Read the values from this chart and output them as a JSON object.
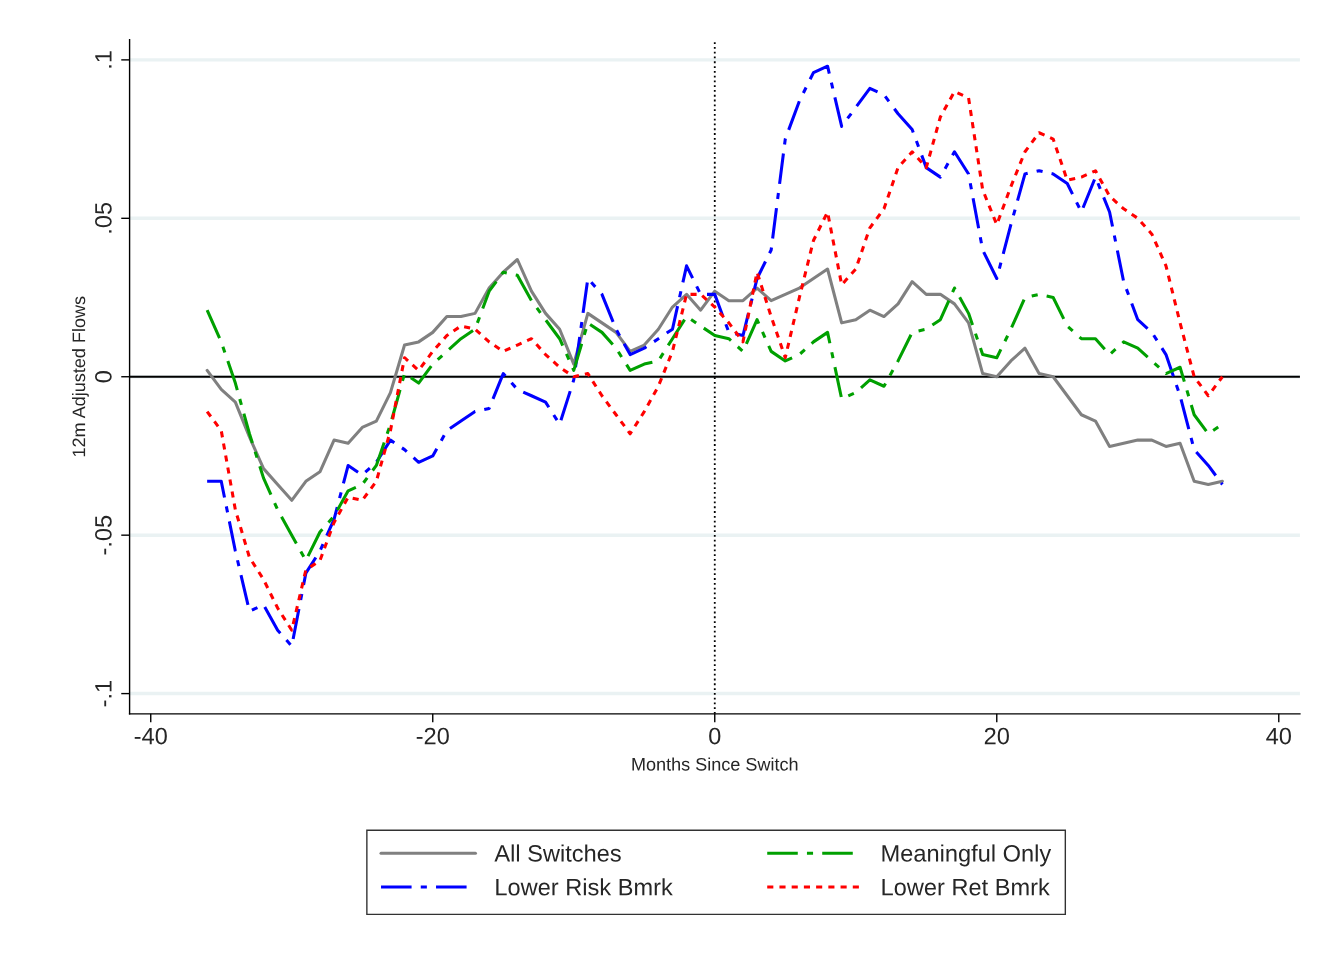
{
  "chart_data": {
    "type": "line",
    "xlabel": "Months Since Switch",
    "ylabel": "12m Adjusted Flows",
    "x": [
      -36,
      -35,
      -34,
      -33,
      -32,
      -31,
      -30,
      -29,
      -28,
      -27,
      -26,
      -25,
      -24,
      -23,
      -22,
      -21,
      -20,
      -19,
      -18,
      -17,
      -16,
      -15,
      -14,
      -13,
      -12,
      -11,
      -10,
      -9,
      -8,
      -7,
      -6,
      -5,
      -4,
      -3,
      -2,
      -1,
      0,
      1,
      2,
      3,
      4,
      5,
      6,
      7,
      8,
      9,
      10,
      11,
      12,
      13,
      14,
      15,
      16,
      17,
      18,
      19,
      20,
      21,
      22,
      23,
      24,
      25,
      26,
      27,
      28,
      29,
      30,
      31,
      32,
      33,
      34,
      35,
      36
    ],
    "series": [
      {
        "name": "All Switches",
        "color": "#808080",
        "line_style": "solid",
        "values": [
          0.002,
          -0.004,
          -0.008,
          -0.019,
          -0.029,
          -0.034,
          -0.039,
          -0.033,
          -0.03,
          -0.02,
          -0.021,
          -0.016,
          -0.014,
          -0.005,
          0.01,
          0.011,
          0.014,
          0.019,
          0.019,
          0.02,
          0.028,
          0.033,
          0.037,
          0.027,
          0.02,
          0.015,
          0.004,
          0.02,
          0.017,
          0.014,
          0.008,
          0.01,
          0.015,
          0.022,
          0.026,
          0.021,
          0.027,
          0.024,
          0.024,
          0.028,
          0.024,
          0.026,
          0.028,
          0.031,
          0.034,
          0.017,
          0.018,
          0.021,
          0.019,
          0.023,
          0.03,
          0.026,
          0.026,
          0.023,
          0.017,
          0.001,
          0.0,
          0.005,
          0.009,
          0.001,
          0.0,
          -0.006,
          -0.012,
          -0.014,
          -0.022,
          -0.021,
          -0.02,
          -0.02,
          -0.022,
          -0.021,
          -0.033,
          -0.034,
          -0.033
        ]
      },
      {
        "name": "Lower Risk Bmrk",
        "color": "#0000ff",
        "line_style": "dashed",
        "values": [
          -0.033,
          -0.033,
          -0.055,
          -0.074,
          -0.072,
          -0.08,
          -0.085,
          -0.062,
          -0.055,
          -0.045,
          -0.028,
          -0.031,
          -0.027,
          -0.02,
          -0.023,
          -0.027,
          -0.025,
          -0.017,
          -0.014,
          -0.011,
          -0.01,
          0.001,
          -0.004,
          -0.006,
          -0.008,
          -0.015,
          -0.001,
          0.031,
          0.026,
          0.015,
          0.007,
          0.009,
          0.012,
          0.015,
          0.035,
          0.026,
          0.026,
          0.014,
          0.013,
          0.031,
          0.04,
          0.075,
          0.087,
          0.096,
          0.098,
          0.079,
          0.085,
          0.091,
          0.089,
          0.083,
          0.078,
          0.066,
          0.063,
          0.071,
          0.064,
          0.04,
          0.031,
          0.048,
          0.064,
          0.065,
          0.064,
          0.061,
          0.052,
          0.063,
          0.052,
          0.03,
          0.018,
          0.014,
          0.007,
          -0.006,
          -0.023,
          -0.028,
          -0.034
        ]
      },
      {
        "name": "Meaningful Only",
        "color": "#00a000",
        "line_style": "dashed",
        "values": [
          0.021,
          0.011,
          -0.002,
          -0.018,
          -0.032,
          -0.042,
          -0.05,
          -0.058,
          -0.049,
          -0.044,
          -0.036,
          -0.034,
          -0.028,
          -0.015,
          0.001,
          -0.002,
          0.004,
          0.008,
          0.012,
          0.015,
          0.027,
          0.033,
          0.032,
          0.024,
          0.018,
          0.012,
          0.002,
          0.017,
          0.014,
          0.009,
          0.002,
          0.004,
          0.005,
          0.012,
          0.019,
          0.016,
          0.013,
          0.012,
          0.008,
          0.018,
          0.008,
          0.005,
          0.007,
          0.011,
          0.014,
          -0.007,
          -0.005,
          -0.001,
          -0.003,
          0.005,
          0.014,
          0.015,
          0.018,
          0.028,
          0.02,
          0.007,
          0.006,
          0.015,
          0.025,
          0.026,
          0.025,
          0.016,
          0.012,
          0.012,
          0.007,
          0.011,
          0.009,
          0.005,
          0.001,
          0.003,
          -0.012,
          -0.018,
          -0.015
        ]
      },
      {
        "name": "Lower Ret Bmrk",
        "color": "#ff0000",
        "line_style": "dotted",
        "values": [
          -0.011,
          -0.017,
          -0.042,
          -0.057,
          -0.064,
          -0.073,
          -0.08,
          -0.061,
          -0.058,
          -0.046,
          -0.038,
          -0.039,
          -0.033,
          -0.017,
          0.006,
          0.002,
          0.008,
          0.013,
          0.016,
          0.015,
          0.011,
          0.008,
          0.01,
          0.012,
          0.007,
          0.003,
          0.0,
          0.001,
          -0.006,
          -0.012,
          -0.018,
          -0.011,
          -0.003,
          0.008,
          0.026,
          0.026,
          0.022,
          0.017,
          0.011,
          0.033,
          0.019,
          0.006,
          0.025,
          0.043,
          0.052,
          0.029,
          0.034,
          0.047,
          0.053,
          0.066,
          0.071,
          0.066,
          0.082,
          0.09,
          0.088,
          0.059,
          0.048,
          0.06,
          0.071,
          0.077,
          0.075,
          0.062,
          0.063,
          0.065,
          0.057,
          0.053,
          0.05,
          0.045,
          0.035,
          0.017,
          0.0,
          -0.006,
          0.0
        ]
      }
    ],
    "xlim": [
      -41.5,
      41.5
    ],
    "xticks": [
      -40,
      -20,
      0,
      20,
      40
    ],
    "ylim": [
      -0.1064,
      0.1064
    ],
    "yticks": [
      {
        "value": -0.1,
        "label": "-.1"
      },
      {
        "value": -0.05,
        "label": "-.05"
      },
      {
        "value": 0,
        "label": "0"
      },
      {
        "value": 0.05,
        "label": ".05"
      },
      {
        "value": 0.1,
        "label": ".1"
      }
    ],
    "ref_lines": [
      {
        "axis": "y",
        "value": 0,
        "color": "#000000",
        "line_style": "solid"
      },
      {
        "axis": "x",
        "value": 0,
        "color": "#000000",
        "line_style": "dotted"
      }
    ],
    "grid": "y",
    "legend": "bottom"
  }
}
